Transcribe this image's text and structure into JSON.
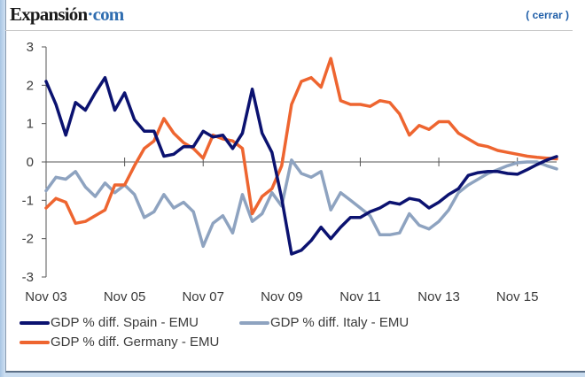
{
  "header": {
    "logo_main": "Expansión",
    "logo_suffix": "·com",
    "close_label": "( cerrar )"
  },
  "colors": {
    "spain": "#0b1270",
    "italy": "#8ea3c0",
    "germany": "#ee6530",
    "axis": "#555555"
  },
  "chart_data": {
    "type": "line",
    "title": "",
    "xlabel": "",
    "ylabel": "",
    "ylim": [
      -3,
      3
    ],
    "yticks": [
      3,
      2,
      1,
      0,
      -1,
      -2,
      -3
    ],
    "x_start": "Nov 03",
    "x_frequency": "quarterly",
    "xticks": [
      "Nov 03",
      "Nov 05",
      "Nov 07",
      "Nov 09",
      "Nov 11",
      "Nov 13",
      "Nov 15"
    ],
    "xtick_index": [
      0,
      8,
      16,
      24,
      32,
      40,
      48
    ],
    "grid": false,
    "legend_position": "bottom",
    "series": [
      {
        "name": "GDP % diff. Spain - EMU",
        "key": "spain",
        "values": [
          2.1,
          1.5,
          0.7,
          1.55,
          1.35,
          1.8,
          2.2,
          1.35,
          1.8,
          1.1,
          0.8,
          0.8,
          0.15,
          0.2,
          0.4,
          0.4,
          0.8,
          0.65,
          0.7,
          0.35,
          0.75,
          1.9,
          0.75,
          0.25,
          -0.95,
          -2.4,
          -2.3,
          -2.05,
          -1.7,
          -2.0,
          -1.7,
          -1.45,
          -1.45,
          -1.3,
          -1.2,
          -1.05,
          -1.1,
          -0.95,
          -1.0,
          -1.2,
          -1.05,
          -0.85,
          -0.7,
          -0.35,
          -0.28,
          -0.25,
          -0.25,
          -0.3,
          -0.32,
          -0.2,
          -0.07,
          0.05,
          0.14
        ]
      },
      {
        "name": "GDP % diff. Italy - EMU",
        "key": "italy",
        "values": [
          -0.75,
          -0.4,
          -0.45,
          -0.25,
          -0.65,
          -0.9,
          -0.55,
          -0.8,
          -0.6,
          -0.85,
          -1.45,
          -1.3,
          -0.85,
          -1.2,
          -1.05,
          -1.3,
          -2.2,
          -1.6,
          -1.4,
          -1.85,
          -0.85,
          -1.55,
          -1.35,
          -0.8,
          -1.15,
          0.05,
          -0.3,
          -0.4,
          -0.25,
          -1.25,
          -0.8,
          -1.0,
          -1.2,
          -1.4,
          -1.9,
          -1.9,
          -1.85,
          -1.35,
          -1.65,
          -1.75,
          -1.55,
          -1.25,
          -0.8,
          -0.6,
          -0.45,
          -0.3,
          -0.2,
          -0.1,
          -0.02,
          0.0,
          0.0,
          -0.1,
          -0.18
        ]
      },
      {
        "name": "GDP % diff. Germany - EMU",
        "key": "germany",
        "values": [
          -1.2,
          -0.95,
          -1.05,
          -1.6,
          -1.55,
          -1.4,
          -1.25,
          -0.6,
          -0.6,
          -0.1,
          0.35,
          0.55,
          1.13,
          0.75,
          0.5,
          0.35,
          0.1,
          0.7,
          0.6,
          0.55,
          0.35,
          -1.35,
          -0.9,
          -0.7,
          -0.1,
          1.5,
          2.1,
          2.2,
          1.95,
          2.7,
          1.6,
          1.5,
          1.5,
          1.45,
          1.6,
          1.55,
          1.25,
          0.7,
          0.95,
          0.85,
          1.05,
          1.05,
          0.75,
          0.6,
          0.45,
          0.4,
          0.3,
          0.25,
          0.2,
          0.15,
          0.12,
          0.1,
          0.08
        ]
      }
    ]
  }
}
